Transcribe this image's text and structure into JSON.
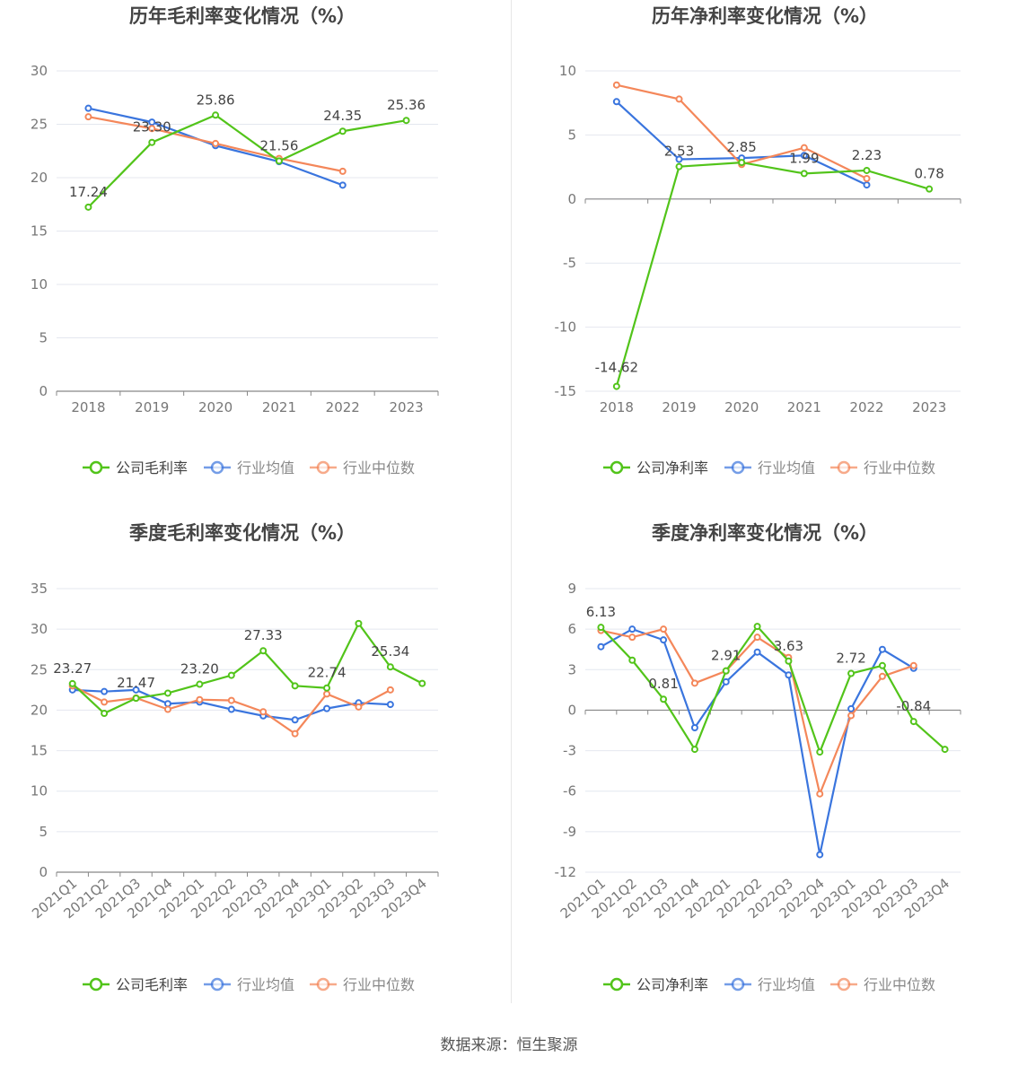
{
  "source_label": "数据来源：恒生聚源",
  "colors": {
    "company": "#52c41a",
    "avg": "#3a75de",
    "median": "#f4875a"
  },
  "legend": {
    "avg": "行业均值",
    "median": "行业中位数"
  },
  "chart_data": [
    {
      "type": "line",
      "title": "历年毛利率变化情况（%）",
      "categories": [
        "2018",
        "2019",
        "2020",
        "2021",
        "2022",
        "2023"
      ],
      "ylim": [
        0,
        30
      ],
      "yticks": [
        "0",
        "5",
        "10",
        "15",
        "20",
        "25",
        "30"
      ],
      "company_label": "公司毛利率",
      "series": [
        {
          "name": "公司毛利率",
          "values": [
            17.24,
            23.3,
            25.86,
            21.56,
            24.35,
            25.36
          ],
          "labels": [
            "17.24",
            "23.30",
            "25.86",
            "21.56",
            "24.35",
            "25.36"
          ]
        },
        {
          "name": "行业均值",
          "values": [
            26.5,
            25.2,
            23.0,
            21.5,
            19.3,
            null
          ]
        },
        {
          "name": "行业中位数",
          "values": [
            25.7,
            24.6,
            23.2,
            21.8,
            20.6,
            null
          ]
        }
      ]
    },
    {
      "type": "line",
      "title": "历年净利率变化情况（%）",
      "categories": [
        "2018",
        "2019",
        "2020",
        "2021",
        "2022",
        "2023"
      ],
      "ylim": [
        -15,
        10
      ],
      "yticks": [
        "-15",
        "-10",
        "-5",
        "0",
        "5",
        "10"
      ],
      "company_label": "公司净利率",
      "series": [
        {
          "name": "公司净利率",
          "values": [
            -14.62,
            2.53,
            2.85,
            1.99,
            2.23,
            0.78
          ],
          "labels": [
            "-14.62",
            "2.53",
            "2.85",
            "1.99",
            "2.23",
            "0.78"
          ]
        },
        {
          "name": "行业均值",
          "values": [
            7.6,
            3.1,
            3.2,
            3.4,
            1.1,
            null
          ]
        },
        {
          "name": "行业中位数",
          "values": [
            8.9,
            7.8,
            2.7,
            4.0,
            1.6,
            null
          ]
        }
      ]
    },
    {
      "type": "line",
      "title": "季度毛利率变化情况（%）",
      "categories": [
        "2021Q1",
        "2021Q2",
        "2021Q3",
        "2021Q4",
        "2022Q1",
        "2022Q2",
        "2022Q3",
        "2022Q4",
        "2023Q1",
        "2023Q2",
        "2023Q3",
        "2023Q4"
      ],
      "ylim": [
        0,
        35
      ],
      "yticks": [
        "0",
        "5",
        "10",
        "15",
        "20",
        "25",
        "30",
        "35"
      ],
      "company_label": "公司毛利率",
      "series": [
        {
          "name": "公司毛利率",
          "values": [
            23.27,
            19.6,
            21.47,
            22.1,
            23.2,
            24.3,
            27.33,
            23.0,
            22.74,
            30.7,
            25.34,
            23.3
          ],
          "labels": [
            "23.27",
            "",
            "21.47",
            "",
            "23.20",
            "",
            "27.33",
            "",
            "22.74",
            "",
            "25.34",
            ""
          ]
        },
        {
          "name": "行业均值",
          "values": [
            22.5,
            22.3,
            22.5,
            20.8,
            21.0,
            20.1,
            19.3,
            18.8,
            20.2,
            20.9,
            20.7,
            null
          ]
        },
        {
          "name": "行业中位数",
          "values": [
            23.0,
            21.0,
            21.5,
            20.1,
            21.3,
            21.2,
            19.8,
            17.1,
            22.0,
            20.4,
            22.5,
            null
          ]
        }
      ]
    },
    {
      "type": "line",
      "title": "季度净利率变化情况（%）",
      "categories": [
        "2021Q1",
        "2021Q2",
        "2021Q3",
        "2021Q4",
        "2022Q1",
        "2022Q2",
        "2022Q3",
        "2022Q4",
        "2023Q1",
        "2023Q2",
        "2023Q3",
        "2023Q4"
      ],
      "ylim": [
        -12,
        9
      ],
      "yticks": [
        "-12",
        "-9",
        "-6",
        "-3",
        "0",
        "3",
        "6",
        "9"
      ],
      "company_label": "公司净利率",
      "series": [
        {
          "name": "公司净利率",
          "values": [
            6.13,
            3.7,
            0.81,
            -2.9,
            2.91,
            6.2,
            3.63,
            -3.1,
            2.72,
            3.3,
            -0.84,
            -2.9
          ],
          "labels": [
            "6.13",
            "",
            "0.81",
            "",
            "2.91",
            "",
            "3.63",
            "",
            "2.72",
            "",
            "-0.84",
            ""
          ]
        },
        {
          "name": "行业均值",
          "values": [
            4.7,
            6.0,
            5.2,
            -1.3,
            2.1,
            4.3,
            2.6,
            -10.7,
            0.1,
            4.5,
            3.1,
            null
          ]
        },
        {
          "name": "行业中位数",
          "values": [
            5.9,
            5.4,
            6.0,
            2.0,
            2.9,
            5.4,
            3.9,
            -6.2,
            -0.4,
            2.5,
            3.3,
            null
          ]
        }
      ]
    }
  ]
}
